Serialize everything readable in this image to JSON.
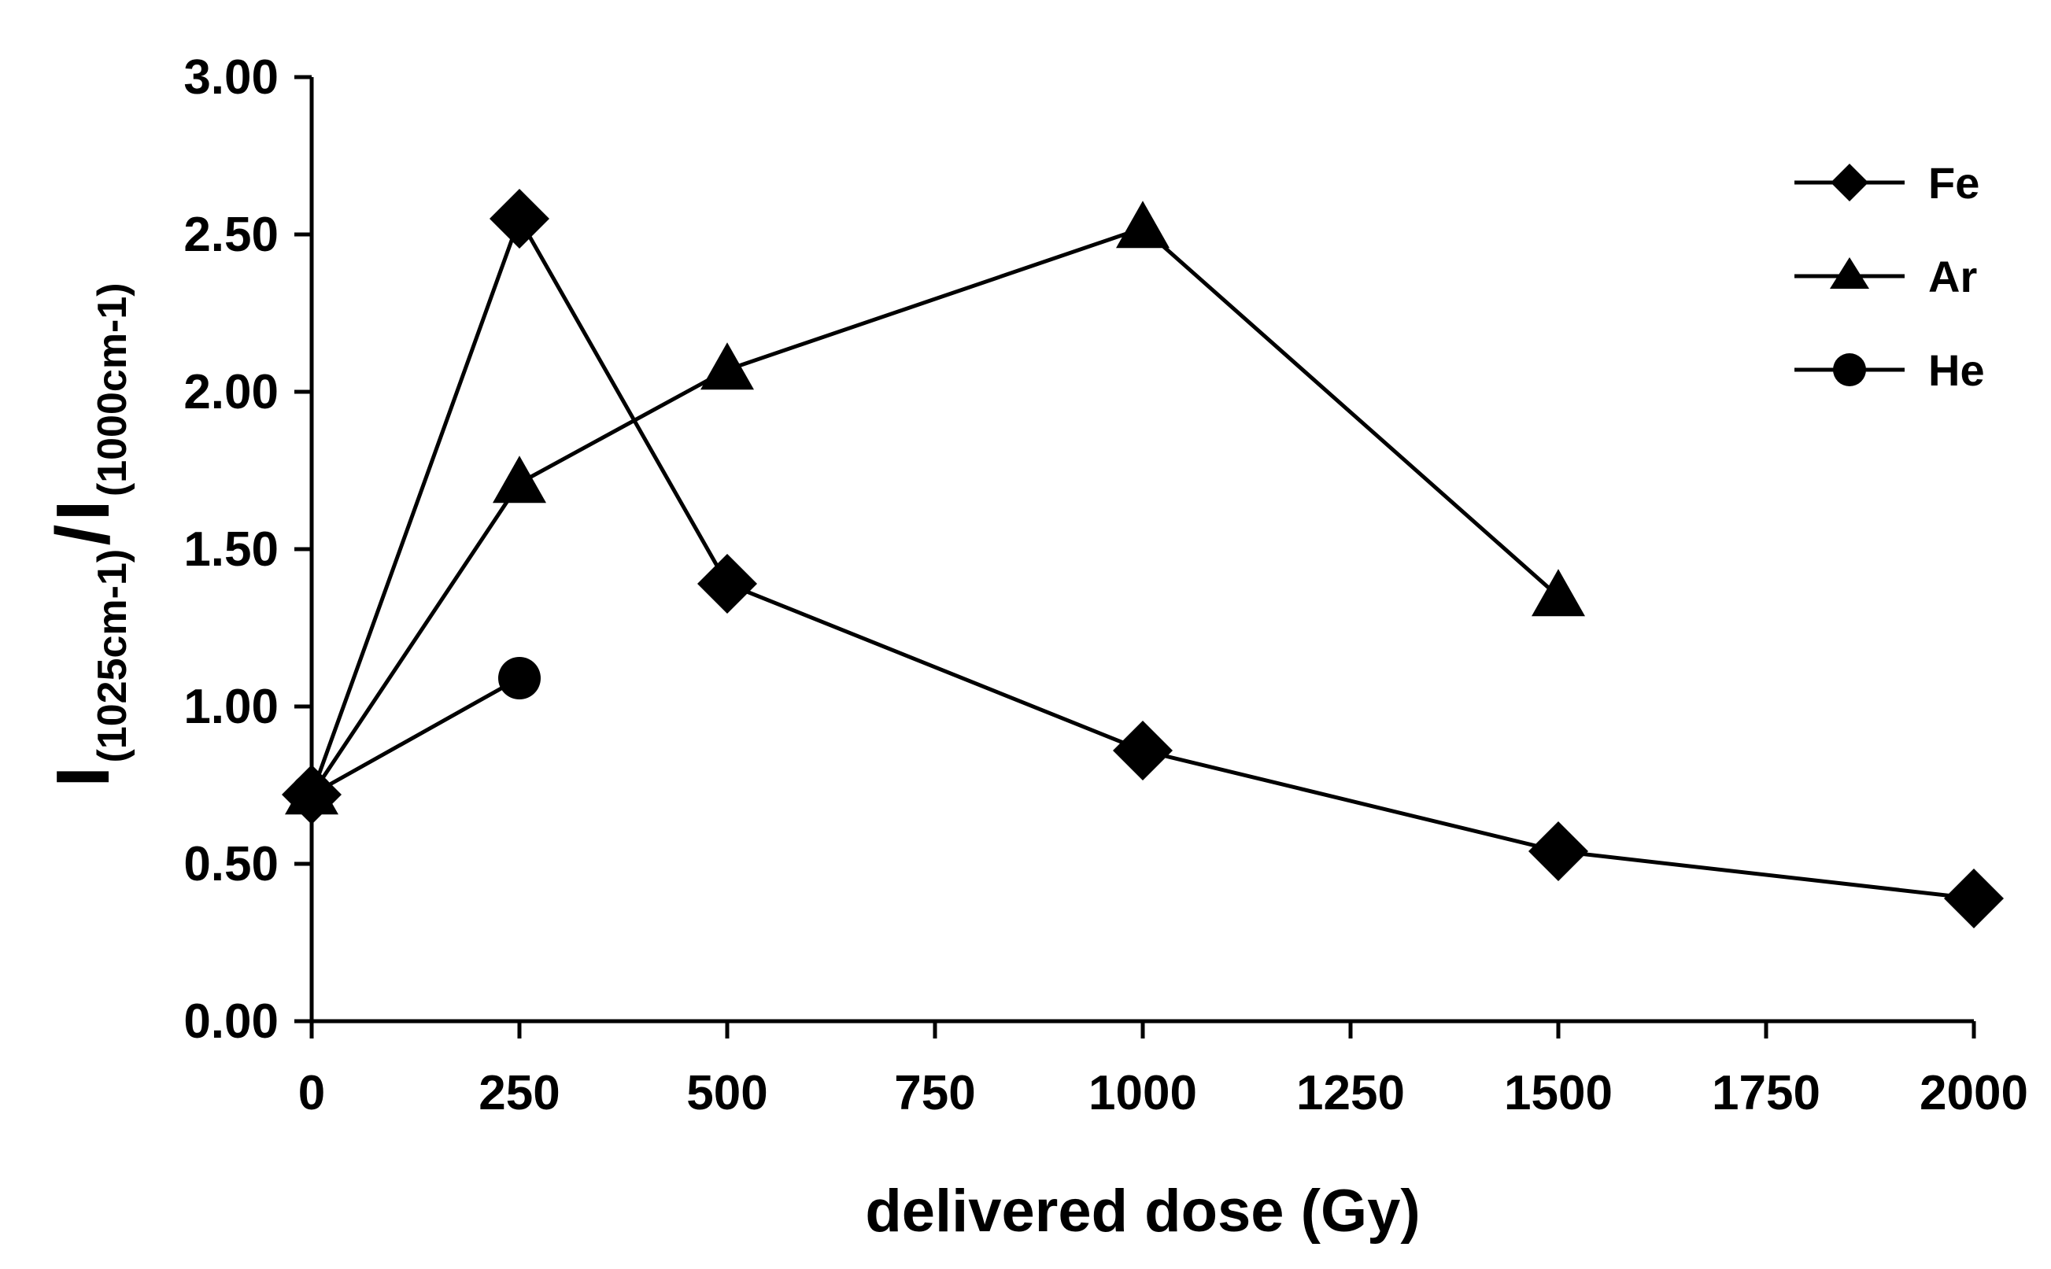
{
  "chart_data": {
    "type": "line",
    "xlabel": "delivered dose (Gy)",
    "ylabel": {
      "numerator_main": "I",
      "numerator_sub": "(1025cm-1)",
      "separator": "/",
      "denominator_main": "I",
      "denominator_sub": "(1000cm-1)"
    },
    "xlim": [
      0,
      2000
    ],
    "ylim": [
      0,
      3
    ],
    "xticks": [
      0,
      250,
      500,
      750,
      1000,
      1250,
      1500,
      1750,
      2000
    ],
    "xtick_labels": [
      "0",
      "250",
      "500",
      "750",
      "1000",
      "1250",
      "1500",
      "1750",
      "2000"
    ],
    "yticks": [
      0,
      0.5,
      1,
      1.5,
      2,
      2.5,
      3
    ],
    "ytick_labels": [
      "0.00",
      "0.50",
      "1.00",
      "1.50",
      "2.00",
      "2.50",
      "3.00"
    ],
    "grid": false,
    "legend_position": "top-right",
    "series": [
      {
        "name": "Fe",
        "marker": "diamond",
        "color": "#000000",
        "points": [
          [
            0,
            0.72
          ],
          [
            250,
            2.55
          ],
          [
            500,
            1.39
          ],
          [
            1000,
            0.86
          ],
          [
            1500,
            0.54
          ],
          [
            2000,
            0.39
          ]
        ]
      },
      {
        "name": "Ar",
        "marker": "triangle",
        "color": "#000000",
        "points": [
          [
            0,
            0.72
          ],
          [
            250,
            1.71
          ],
          [
            500,
            2.07
          ],
          [
            1000,
            2.52
          ],
          [
            1500,
            1.35
          ]
        ]
      },
      {
        "name": "He",
        "marker": "circle",
        "color": "#000000",
        "points": [
          [
            0,
            0.72
          ],
          [
            250,
            1.09
          ]
        ]
      }
    ]
  }
}
